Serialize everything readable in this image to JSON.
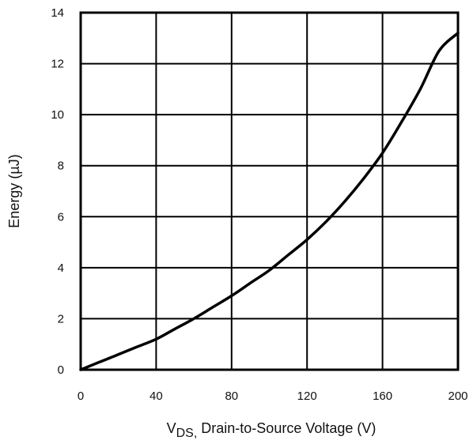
{
  "chart_data": {
    "type": "line",
    "title": "",
    "xlabel_main": "V",
    "xlabel_sub": "DS,",
    "xlabel_rest": " Drain-to-Source Voltage (V)",
    "ylabel": "Energy (µJ)",
    "xlim": [
      0,
      200
    ],
    "ylim": [
      0,
      14
    ],
    "x_ticks": [
      0,
      40,
      80,
      120,
      160,
      200
    ],
    "y_ticks": [
      0,
      2,
      4,
      6,
      8,
      10,
      12,
      14
    ],
    "x_tick_labels": [
      "0",
      "40",
      "80",
      "120",
      "160",
      "200"
    ],
    "y_tick_labels": [
      "0",
      "2",
      "4",
      "6",
      "8",
      "10",
      "12",
      "14"
    ],
    "grid": true,
    "series": [
      {
        "name": "Energy",
        "color": "#000000",
        "x": [
          0,
          10,
          20,
          30,
          40,
          50,
          60,
          70,
          80,
          90,
          100,
          110,
          120,
          130,
          140,
          150,
          160,
          170,
          180,
          190,
          200
        ],
        "y": [
          0,
          0.3,
          0.6,
          0.9,
          1.2,
          1.6,
          2.0,
          2.45,
          2.9,
          3.4,
          3.9,
          4.5,
          5.1,
          5.8,
          6.6,
          7.5,
          8.5,
          9.7,
          11.0,
          12.5,
          13.2
        ]
      }
    ]
  }
}
